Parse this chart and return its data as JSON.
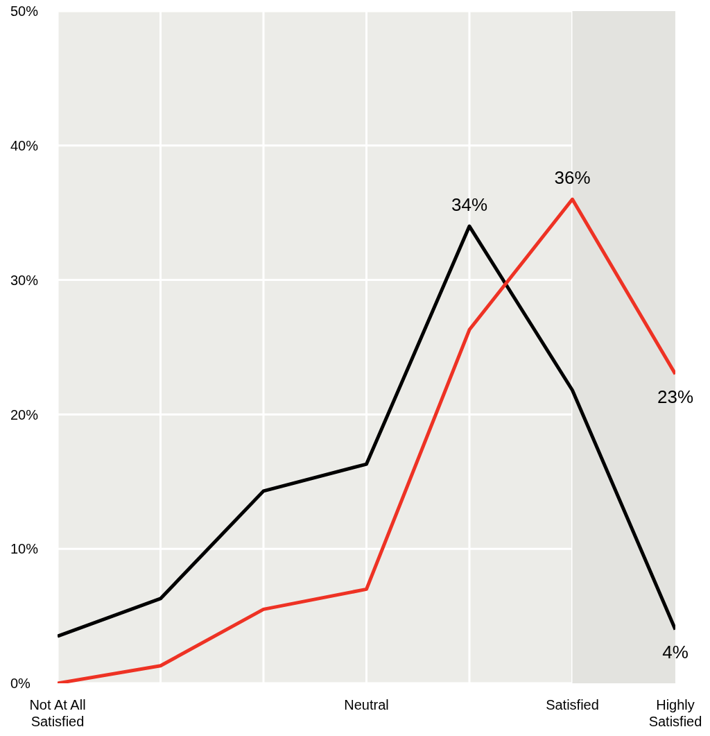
{
  "chart_data": {
    "type": "line",
    "categories": [
      "Not At All Satisfied",
      null,
      null,
      "Neutral",
      null,
      "Satisfied",
      "Highly Satisfied"
    ],
    "ylim": [
      0,
      50
    ],
    "yticks": [
      {
        "value": 0,
        "label": "0%"
      },
      {
        "value": 10,
        "label": "10%"
      },
      {
        "value": 20,
        "label": "20%"
      },
      {
        "value": 30,
        "label": "30%"
      },
      {
        "value": 40,
        "label": "40%"
      },
      {
        "value": 50,
        "label": "50%"
      }
    ],
    "grid": true,
    "marker": "none",
    "line_style": "solid",
    "bands": [
      {
        "axis": "x",
        "from": "Satisfied",
        "to": "Highly Satisfied",
        "color": "#e3e3df"
      }
    ],
    "series": [
      {
        "color": "#000000",
        "values": [
          3.5,
          6.3,
          14.3,
          16.3,
          34,
          21.8,
          4
        ],
        "value_labels": [
          null,
          null,
          null,
          null,
          "34%",
          null,
          "4%"
        ]
      },
      {
        "color": "#ee3224",
        "values": [
          0,
          1.3,
          5.5,
          7.0,
          26.3,
          36,
          23
        ],
        "value_labels": [
          null,
          null,
          null,
          null,
          null,
          "36%",
          "23%"
        ]
      }
    ]
  }
}
